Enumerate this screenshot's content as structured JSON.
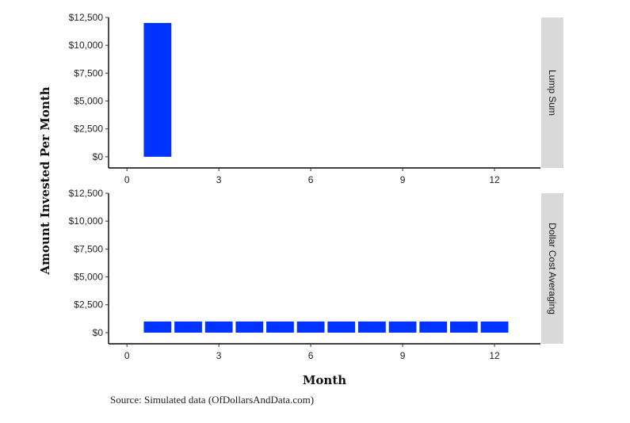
{
  "chart_data": {
    "type": "bar",
    "ylabel": "Amount Invested Per Month",
    "xlabel": "Month",
    "source": "Source:  Simulated data (OfDollarsAndData.com)",
    "bar_color": "#0033ff",
    "strip_color": "#d9d9d9",
    "xlim": [
      -0.6,
      13.5
    ],
    "ylim": [
      -1000,
      12500
    ],
    "x_ticks": [
      0,
      3,
      6,
      9,
      12
    ],
    "y_ticks": [
      0,
      2500,
      5000,
      7500,
      10000,
      12500
    ],
    "y_tick_labels": [
      "$0",
      "$2,500",
      "$5,000",
      "$7,500",
      "$10,000",
      "$12,500"
    ],
    "panels": [
      {
        "name": "Lump Sum",
        "x": [
          1
        ],
        "values": [
          12000
        ]
      },
      {
        "name": "Dollar Cost Averaging",
        "x": [
          1,
          2,
          3,
          4,
          5,
          6,
          7,
          8,
          9,
          10,
          11,
          12
        ],
        "values": [
          1000,
          1000,
          1000,
          1000,
          1000,
          1000,
          1000,
          1000,
          1000,
          1000,
          1000,
          1000
        ]
      }
    ]
  }
}
